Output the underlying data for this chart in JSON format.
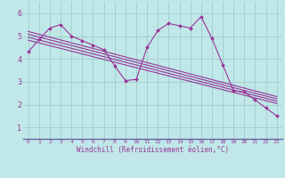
{
  "xlabel": "Windchill (Refroidissement éolien,°C)",
  "bg_color": "#c0e8e8",
  "grid_color": "#a0cccc",
  "line_color": "#993399",
  "border_color": "#6666aa",
  "xlim": [
    -0.5,
    23.5
  ],
  "ylim": [
    0.5,
    6.5
  ],
  "yticks": [
    1,
    2,
    3,
    4,
    5,
    6
  ],
  "xticks": [
    0,
    1,
    2,
    3,
    4,
    5,
    6,
    7,
    8,
    9,
    10,
    11,
    12,
    13,
    14,
    15,
    16,
    17,
    18,
    19,
    20,
    21,
    22,
    23
  ],
  "series1_x": [
    0,
    1,
    2,
    3,
    4,
    5,
    6,
    7,
    8,
    9,
    10,
    11,
    12,
    13,
    14,
    15,
    16,
    17,
    18,
    19,
    20,
    21,
    22,
    23
  ],
  "series1_y": [
    4.3,
    4.85,
    5.35,
    5.5,
    5.0,
    4.8,
    4.6,
    4.4,
    3.7,
    3.05,
    3.1,
    4.5,
    5.25,
    5.55,
    5.45,
    5.35,
    5.85,
    4.9,
    3.75,
    2.6,
    2.55,
    2.2,
    1.85,
    1.5
  ],
  "trend1_x": [
    0,
    23
  ],
  "trend1_y": [
    5.2,
    2.35
  ],
  "trend2_x": [
    0,
    23
  ],
  "trend2_y": [
    5.08,
    2.25
  ],
  "trend3_x": [
    0,
    23
  ],
  "trend3_y": [
    4.95,
    2.15
  ],
  "trend4_x": [
    0,
    23
  ],
  "trend4_y": [
    4.82,
    2.05
  ]
}
